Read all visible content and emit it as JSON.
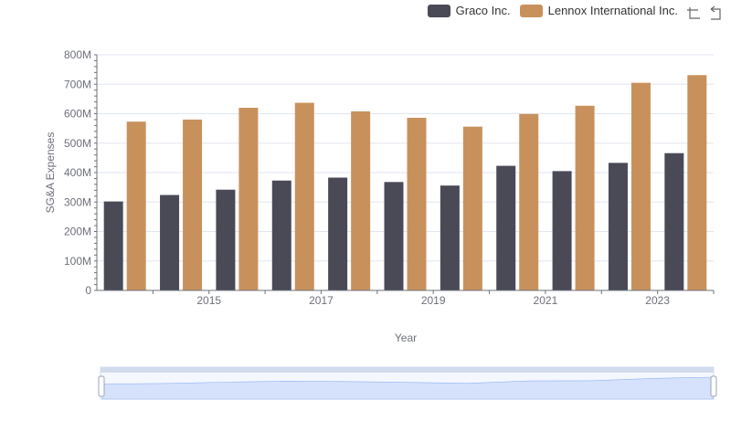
{
  "legend": {
    "items": [
      {
        "name": "Graco Inc.",
        "color": "#4a4a57"
      },
      {
        "name": "Lennox International Inc.",
        "color": "#c8915c"
      }
    ]
  },
  "toolbar": {
    "icons": [
      "zoom-icon",
      "restore-icon"
    ]
  },
  "chart_data": {
    "type": "bar",
    "x": [
      2014,
      2015,
      2016,
      2017,
      2018,
      2019,
      2020,
      2021,
      2022,
      2023,
      2024
    ],
    "x_tick_labels": [
      "2015",
      "2017",
      "2019",
      "2021",
      "2023"
    ],
    "series": [
      {
        "name": "Graco Inc.",
        "color": "#4a4a57",
        "values": [
          302,
          324,
          342,
          373,
          383,
          368,
          356,
          423,
          405,
          433,
          466
        ]
      },
      {
        "name": "Lennox International Inc.",
        "color": "#c8915c",
        "values": [
          573,
          580,
          620,
          637,
          608,
          586,
          556,
          599,
          627,
          705,
          731
        ]
      }
    ],
    "ylabel": "SG&A Expenses",
    "xlabel": "Year",
    "ylim": [
      0,
      800
    ],
    "y_ticks": [
      "0",
      "100M",
      "200M",
      "300M",
      "400M",
      "500M",
      "600M",
      "700M",
      "800M"
    ],
    "grid": true,
    "legend_position": "top-right"
  }
}
